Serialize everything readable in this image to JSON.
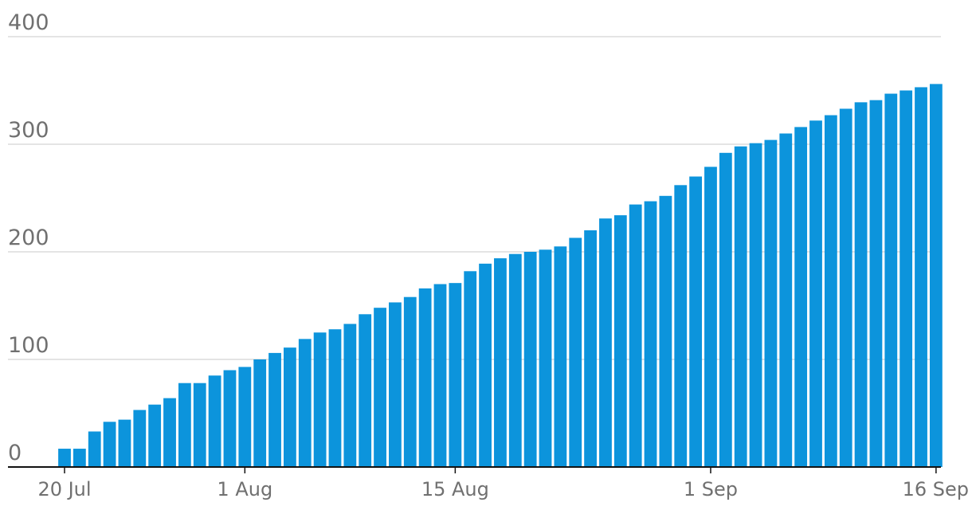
{
  "chart_data": {
    "type": "bar",
    "title": "",
    "xlabel": "",
    "ylabel": "",
    "ylim": [
      0,
      400
    ],
    "y_ticks": [
      0,
      100,
      200,
      300,
      400
    ],
    "y_tick_labels": [
      "0",
      "100",
      "200",
      "300",
      "400"
    ],
    "x_tick_labels": [
      {
        "date": "2020-07-20",
        "label": "20 Jul"
      },
      {
        "date": "2020-08-01",
        "label": "1 Aug"
      },
      {
        "date": "2020-08-15",
        "label": "15 Aug"
      },
      {
        "date": "2020-09-01",
        "label": "1 Sep"
      },
      {
        "date": "2020-09-16",
        "label": "16 Sep"
      }
    ],
    "grid": true,
    "legend": "none",
    "bar_color": "#0c94dc",
    "categories": [
      "2020-07-20",
      "2020-07-21",
      "2020-07-22",
      "2020-07-23",
      "2020-07-24",
      "2020-07-25",
      "2020-07-26",
      "2020-07-27",
      "2020-07-28",
      "2020-07-29",
      "2020-07-30",
      "2020-07-31",
      "2020-08-01",
      "2020-08-02",
      "2020-08-03",
      "2020-08-04",
      "2020-08-05",
      "2020-08-06",
      "2020-08-07",
      "2020-08-08",
      "2020-08-09",
      "2020-08-10",
      "2020-08-11",
      "2020-08-12",
      "2020-08-13",
      "2020-08-14",
      "2020-08-15",
      "2020-08-16",
      "2020-08-17",
      "2020-08-18",
      "2020-08-19",
      "2020-08-20",
      "2020-08-21",
      "2020-08-22",
      "2020-08-23",
      "2020-08-24",
      "2020-08-25",
      "2020-08-26",
      "2020-08-27",
      "2020-08-28",
      "2020-08-29",
      "2020-08-30",
      "2020-08-31",
      "2020-09-01",
      "2020-09-02",
      "2020-09-03",
      "2020-09-04",
      "2020-09-05",
      "2020-09-06",
      "2020-09-07",
      "2020-09-08",
      "2020-09-09",
      "2020-09-10",
      "2020-09-11",
      "2020-09-12",
      "2020-09-13",
      "2020-09-14",
      "2020-09-15",
      "2020-09-16"
    ],
    "values": [
      17,
      17,
      33,
      42,
      44,
      53,
      58,
      64,
      78,
      78,
      85,
      90,
      93,
      100,
      106,
      111,
      119,
      125,
      128,
      133,
      142,
      148,
      153,
      158,
      166,
      170,
      171,
      182,
      189,
      194,
      198,
      200,
      202,
      205,
      213,
      220,
      231,
      234,
      244,
      247,
      252,
      262,
      270,
      279,
      292,
      298,
      301,
      304,
      310,
      316,
      322,
      327,
      333,
      339,
      341,
      347,
      350,
      353,
      356
    ]
  }
}
